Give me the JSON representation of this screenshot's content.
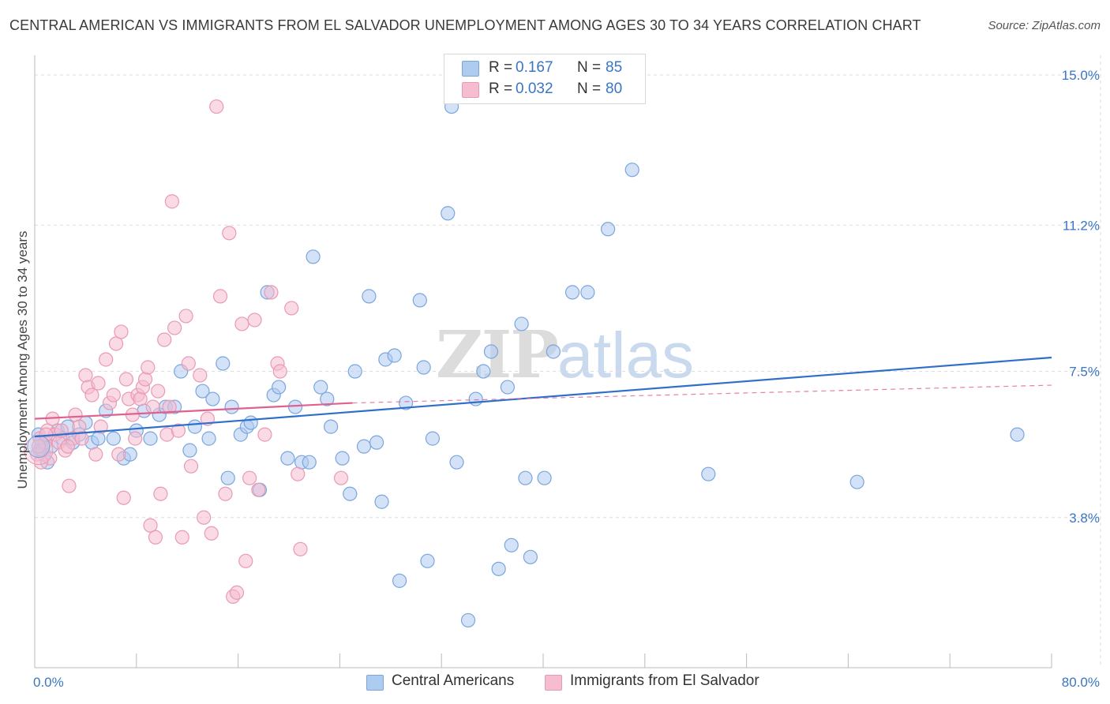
{
  "title": "CENTRAL AMERICAN VS IMMIGRANTS FROM EL SALVADOR UNEMPLOYMENT AMONG AGES 30 TO 34 YEARS CORRELATION CHART",
  "source": "Source: ZipAtlas.com",
  "watermark": {
    "zip": "ZIP",
    "atlas": "atlas"
  },
  "legend_top": [
    {
      "r_label": "R =",
      "r_value": "0.167",
      "n_label": "N =",
      "n_value": "85"
    },
    {
      "r_label": "R =",
      "r_value": "0.032",
      "n_label": "N =",
      "n_value": "80"
    }
  ],
  "legend_bottom": [
    "Central Americans",
    "Immigrants from El Salvador"
  ],
  "colors": {
    "blue_fill": "#aecbf0",
    "blue_stroke": "#7aa6dd",
    "blue_line": "#2f6fcc",
    "pink_fill": "#f6bcd0",
    "pink_stroke": "#e89ab5",
    "pink_line": "#e0608f",
    "accent_text": "#3a75c4",
    "grid": "#dddddd"
  },
  "chart_data": {
    "type": "scatter",
    "xlabel": "",
    "ylabel": "Unemployment Among Ages 30 to 34 years",
    "xlim": [
      0,
      80
    ],
    "ylim": [
      0,
      15.5
    ],
    "x_tick_labels": [
      "0.0%",
      "80.0%"
    ],
    "y_ticks": [
      3.8,
      7.5,
      11.2,
      15.0
    ],
    "y_tick_labels": [
      "3.8%",
      "7.5%",
      "11.2%",
      "15.0%"
    ],
    "grid": true,
    "legend_position": "top-center",
    "series": [
      {
        "name": "Central Americans",
        "color": "#aecbf0",
        "r": 0.167,
        "n": 85,
        "trend": {
          "x": [
            0,
            80
          ],
          "y": [
            5.85,
            7.85
          ],
          "style": "solid"
        },
        "points": [
          [
            0.3,
            5.9
          ],
          [
            0.5,
            5.6
          ],
          [
            0.7,
            5.4
          ],
          [
            1.0,
            5.2
          ],
          [
            1.3,
            5.6
          ],
          [
            1.8,
            6.0
          ],
          [
            2.2,
            5.8
          ],
          [
            2.6,
            6.1
          ],
          [
            3.0,
            5.7
          ],
          [
            3.5,
            5.9
          ],
          [
            4.0,
            6.2
          ],
          [
            4.5,
            5.7
          ],
          [
            5.0,
            5.8
          ],
          [
            5.6,
            6.5
          ],
          [
            6.2,
            5.8
          ],
          [
            7.0,
            5.3
          ],
          [
            7.5,
            5.4
          ],
          [
            8.0,
            6.0
          ],
          [
            8.6,
            6.5
          ],
          [
            9.1,
            5.8
          ],
          [
            9.8,
            6.4
          ],
          [
            10.3,
            6.6
          ],
          [
            11.0,
            6.6
          ],
          [
            11.5,
            7.5
          ],
          [
            12.2,
            5.5
          ],
          [
            12.6,
            6.1
          ],
          [
            13.2,
            7.0
          ],
          [
            13.7,
            5.8
          ],
          [
            14.0,
            6.8
          ],
          [
            14.8,
            7.7
          ],
          [
            15.2,
            4.8
          ],
          [
            15.5,
            6.6
          ],
          [
            16.2,
            5.9
          ],
          [
            16.7,
            6.1
          ],
          [
            17.0,
            6.2
          ],
          [
            17.7,
            4.5
          ],
          [
            18.3,
            9.5
          ],
          [
            18.8,
            6.9
          ],
          [
            19.2,
            7.1
          ],
          [
            19.9,
            5.3
          ],
          [
            20.5,
            6.6
          ],
          [
            21.0,
            5.2
          ],
          [
            21.6,
            5.2
          ],
          [
            21.9,
            10.4
          ],
          [
            22.5,
            7.1
          ],
          [
            23.0,
            6.8
          ],
          [
            23.3,
            6.1
          ],
          [
            24.2,
            5.3
          ],
          [
            24.8,
            4.4
          ],
          [
            25.2,
            7.5
          ],
          [
            25.9,
            5.6
          ],
          [
            26.3,
            9.4
          ],
          [
            26.9,
            5.7
          ],
          [
            27.3,
            4.2
          ],
          [
            27.6,
            7.8
          ],
          [
            28.3,
            7.9
          ],
          [
            28.7,
            2.2
          ],
          [
            29.2,
            6.7
          ],
          [
            30.3,
            9.3
          ],
          [
            30.6,
            7.6
          ],
          [
            30.9,
            2.7
          ],
          [
            31.3,
            5.8
          ],
          [
            32.5,
            11.5
          ],
          [
            32.8,
            14.2
          ],
          [
            33.2,
            5.2
          ],
          [
            34.1,
            1.2
          ],
          [
            34.7,
            6.8
          ],
          [
            35.3,
            7.5
          ],
          [
            35.9,
            8.0
          ],
          [
            36.5,
            2.5
          ],
          [
            37.2,
            7.1
          ],
          [
            37.5,
            3.1
          ],
          [
            38.3,
            8.7
          ],
          [
            38.6,
            4.8
          ],
          [
            39.0,
            2.8
          ],
          [
            40.1,
            4.8
          ],
          [
            40.8,
            8.0
          ],
          [
            42.3,
            9.5
          ],
          [
            43.5,
            9.5
          ],
          [
            45.1,
            11.1
          ],
          [
            47.0,
            12.6
          ],
          [
            53.0,
            4.9
          ],
          [
            64.7,
            4.7
          ],
          [
            77.3,
            5.9
          ],
          [
            0.4,
            5.5
          ]
        ]
      },
      {
        "name": "Immigrants from El Salvador",
        "color": "#f6bcd0",
        "r": 0.032,
        "n": 80,
        "trend": {
          "x": [
            0,
            25
          ],
          "y": [
            6.3,
            6.7
          ],
          "style": "solid",
          "extension": {
            "x": [
              25,
              80
            ],
            "y": [
              6.7,
              7.15
            ],
            "style": "dashed"
          }
        },
        "points": [
          [
            0.2,
            5.4
          ],
          [
            0.4,
            5.8
          ],
          [
            0.6,
            5.5
          ],
          [
            0.8,
            5.7
          ],
          [
            1.0,
            6.0
          ],
          [
            1.2,
            5.3
          ],
          [
            1.4,
            6.3
          ],
          [
            1.6,
            5.9
          ],
          [
            1.9,
            5.7
          ],
          [
            2.1,
            6.0
          ],
          [
            2.4,
            5.5
          ],
          [
            2.7,
            4.6
          ],
          [
            3.0,
            5.8
          ],
          [
            3.2,
            6.4
          ],
          [
            3.5,
            6.1
          ],
          [
            3.7,
            5.8
          ],
          [
            4.0,
            7.4
          ],
          [
            4.2,
            7.1
          ],
          [
            4.5,
            6.9
          ],
          [
            4.8,
            5.4
          ],
          [
            5.0,
            7.2
          ],
          [
            5.2,
            6.1
          ],
          [
            5.6,
            7.8
          ],
          [
            5.9,
            6.7
          ],
          [
            6.2,
            6.9
          ],
          [
            6.4,
            8.2
          ],
          [
            6.6,
            5.4
          ],
          [
            6.8,
            8.5
          ],
          [
            7.0,
            4.3
          ],
          [
            7.2,
            7.3
          ],
          [
            7.4,
            6.8
          ],
          [
            7.7,
            6.4
          ],
          [
            7.9,
            5.8
          ],
          [
            8.1,
            6.9
          ],
          [
            8.3,
            6.8
          ],
          [
            8.5,
            7.1
          ],
          [
            8.7,
            7.3
          ],
          [
            8.9,
            7.6
          ],
          [
            9.1,
            3.6
          ],
          [
            9.3,
            6.6
          ],
          [
            9.5,
            3.3
          ],
          [
            9.7,
            7.0
          ],
          [
            9.9,
            4.4
          ],
          [
            10.2,
            8.3
          ],
          [
            10.4,
            5.9
          ],
          [
            10.6,
            6.6
          ],
          [
            10.8,
            11.8
          ],
          [
            11.0,
            8.6
          ],
          [
            11.3,
            6.0
          ],
          [
            11.6,
            3.3
          ],
          [
            11.9,
            8.9
          ],
          [
            12.1,
            7.7
          ],
          [
            12.3,
            5.1
          ],
          [
            13.0,
            7.4
          ],
          [
            13.3,
            3.8
          ],
          [
            13.6,
            6.3
          ],
          [
            13.9,
            3.4
          ],
          [
            14.3,
            14.2
          ],
          [
            14.6,
            9.4
          ],
          [
            15.0,
            4.4
          ],
          [
            15.3,
            11.0
          ],
          [
            15.6,
            1.8
          ],
          [
            15.9,
            1.9
          ],
          [
            16.3,
            8.7
          ],
          [
            16.6,
            2.7
          ],
          [
            16.9,
            4.8
          ],
          [
            17.3,
            8.8
          ],
          [
            17.6,
            4.5
          ],
          [
            18.1,
            5.9
          ],
          [
            18.6,
            9.5
          ],
          [
            19.1,
            7.7
          ],
          [
            19.3,
            7.5
          ],
          [
            20.2,
            9.1
          ],
          [
            20.7,
            4.9
          ],
          [
            20.9,
            3.0
          ],
          [
            24.1,
            4.8
          ],
          [
            0.3,
            5.6
          ],
          [
            0.5,
            5.2
          ],
          [
            0.9,
            5.9
          ],
          [
            2.6,
            5.6
          ]
        ]
      }
    ]
  }
}
